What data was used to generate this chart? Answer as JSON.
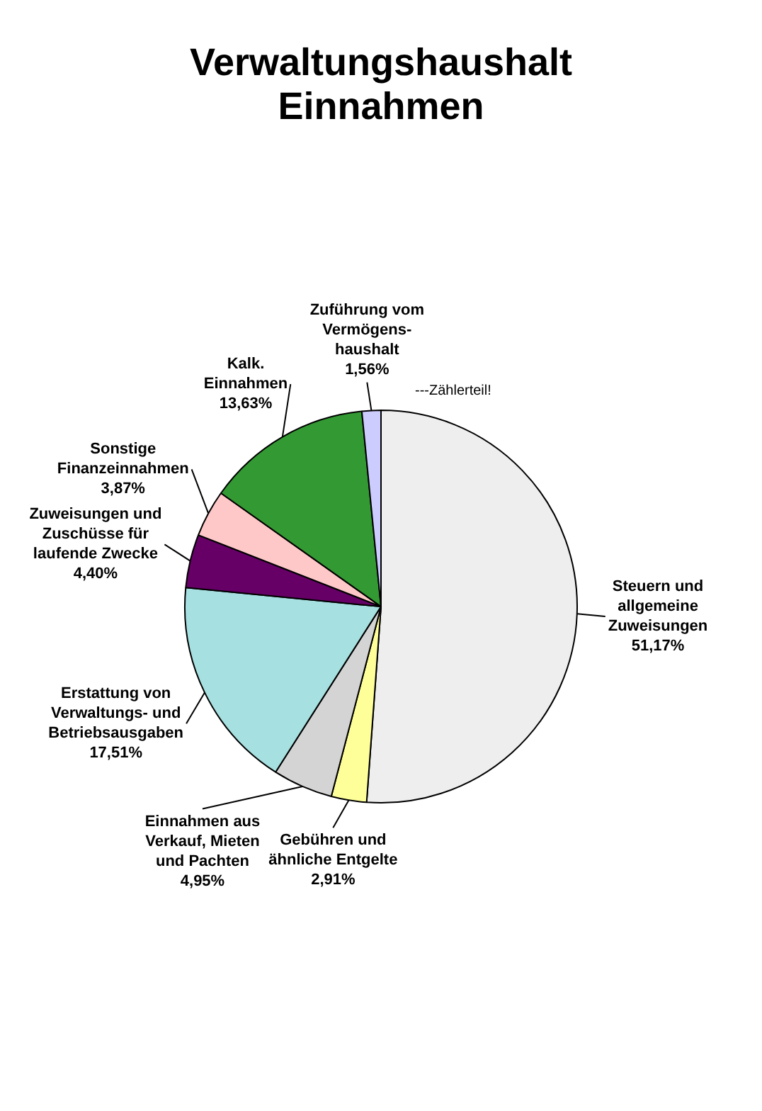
{
  "chart_data": {
    "type": "pie",
    "title": "Verwaltungshaushalt\nEinnahmen",
    "categories": [
      "Steuern und\nallgemeine\nZuweisungen",
      "Gebühren und\nähnliche Entgelte",
      "Einnahmen aus\nVerkauf, Mieten\nund Pachten",
      "Erstattung von\nVerwaltungs- und\nBetriebsausgaben",
      "Zuweisungen und\nZuschüsse für\nlaufende Zwecke",
      "Sonstige\nFinanzeinnahmen",
      "Kalk.\nEinnahmen",
      "Zuführung vom\nVermögens-\nhaushalt"
    ],
    "values": [
      51.17,
      2.91,
      4.95,
      17.51,
      4.4,
      3.87,
      13.63,
      1.56
    ],
    "value_labels": [
      "51,17%",
      "2,91%",
      "4,95%",
      "17,51%",
      "4,40%",
      "3,87%",
      "13,63%",
      "1,56%"
    ],
    "colors": [
      "#eeeeee",
      "#ffff99",
      "#d4d4d4",
      "#a6e0e0",
      "#660066",
      "#ffc8c8",
      "#339933",
      "#ccccff"
    ],
    "annotations": [
      "---Zählerteil!"
    ]
  }
}
